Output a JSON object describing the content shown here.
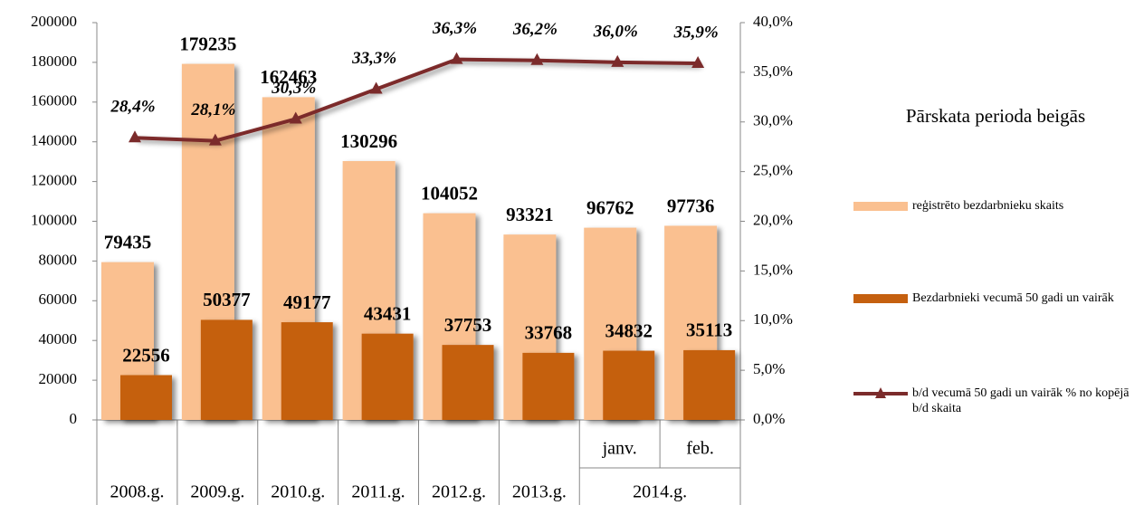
{
  "chart_data": {
    "type": "bar",
    "legend_title": "Pārskata perioda beigās",
    "categories": [
      null,
      null,
      null,
      null,
      null,
      null,
      "janv.",
      "feb."
    ],
    "category_groups": [
      {
        "label": "2008.g.",
        "span": 1
      },
      {
        "label": "2009.g.",
        "span": 1
      },
      {
        "label": "2010.g.",
        "span": 1
      },
      {
        "label": "2011.g.",
        "span": 1
      },
      {
        "label": "2012.g.",
        "span": 1
      },
      {
        "label": "2013.g.",
        "span": 1
      },
      {
        "label": "2014.g.",
        "span": 2
      }
    ],
    "series": [
      {
        "name": "reģistrēto bezdarbnieku skaits",
        "type": "bar",
        "color": "#fac090",
        "values": [
          79435,
          179235,
          162463,
          130296,
          104052,
          93321,
          96762,
          97736
        ]
      },
      {
        "name": "Bezdarbnieki vecumā 50 gadi un vairāk",
        "type": "bar",
        "color": "#c5600f",
        "values": [
          22556,
          50377,
          49177,
          43431,
          37753,
          33768,
          34832,
          35113
        ]
      },
      {
        "name": "b/d vecumā 50 gadi un vairāk % no kopējā b/d skaita",
        "type": "line",
        "axis": "y2",
        "color": "#7b2b2b",
        "values": [
          28.4,
          28.1,
          30.3,
          33.3,
          36.3,
          36.2,
          36.0,
          35.9
        ],
        "value_labels": [
          "28,4%",
          "28,1%",
          "30,3%",
          "33,3%",
          "36,3%",
          "36,2%",
          "36,0%",
          "35,9%"
        ]
      }
    ],
    "ylim": [
      0,
      200000
    ],
    "yticks": [
      0,
      20000,
      40000,
      60000,
      80000,
      100000,
      120000,
      140000,
      160000,
      180000,
      200000
    ],
    "y2lim": [
      0,
      40
    ],
    "y2ticks": [
      {
        "value": 0,
        "label": "0,0%"
      },
      {
        "value": 5,
        "label": "5,0%"
      },
      {
        "value": 10,
        "label": "10,0%"
      },
      {
        "value": 15,
        "label": "15,0%"
      },
      {
        "value": 20,
        "label": "20,0%"
      },
      {
        "value": 25,
        "label": "25,0%"
      },
      {
        "value": 30,
        "label": "30,0%"
      },
      {
        "value": 35,
        "label": "35,0%"
      },
      {
        "value": 40,
        "label": "40,0%"
      }
    ],
    "legend_position": "right"
  }
}
